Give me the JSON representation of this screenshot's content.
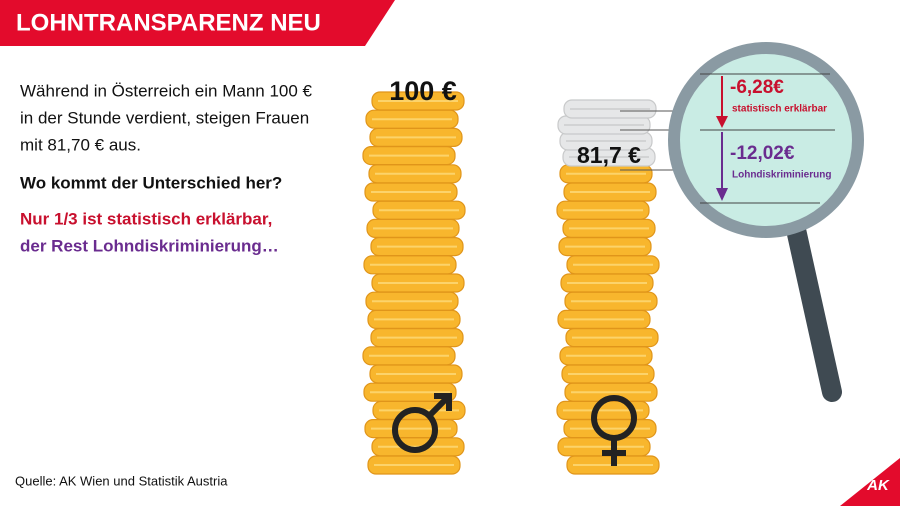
{
  "header": {
    "title": "LOHNTRANSPARENZ NEU"
  },
  "intro": {
    "lines": [
      "Während in Österreich ein Mann 100 €",
      "in der Stunde verdient, steigen Frauen",
      "mit 81,70 € aus."
    ]
  },
  "question": "Wo kommt der Unterschied her?",
  "highlight": {
    "explained": "Nur 1/3 ist statistisch erklärbar,",
    "rest": "der Rest Lohndiskriminierung…"
  },
  "stacks": {
    "men": "100 €",
    "women": "81,7 €"
  },
  "magnifier": {
    "explained_value": "-6,28€",
    "explained_label": "statistisch erklärbar",
    "discrimination_value": "-12,02€",
    "discrimination_label": "Lohndiskriminierung"
  },
  "source": "Quelle: AK Wien und Statistik Austria",
  "logo": "AK"
}
